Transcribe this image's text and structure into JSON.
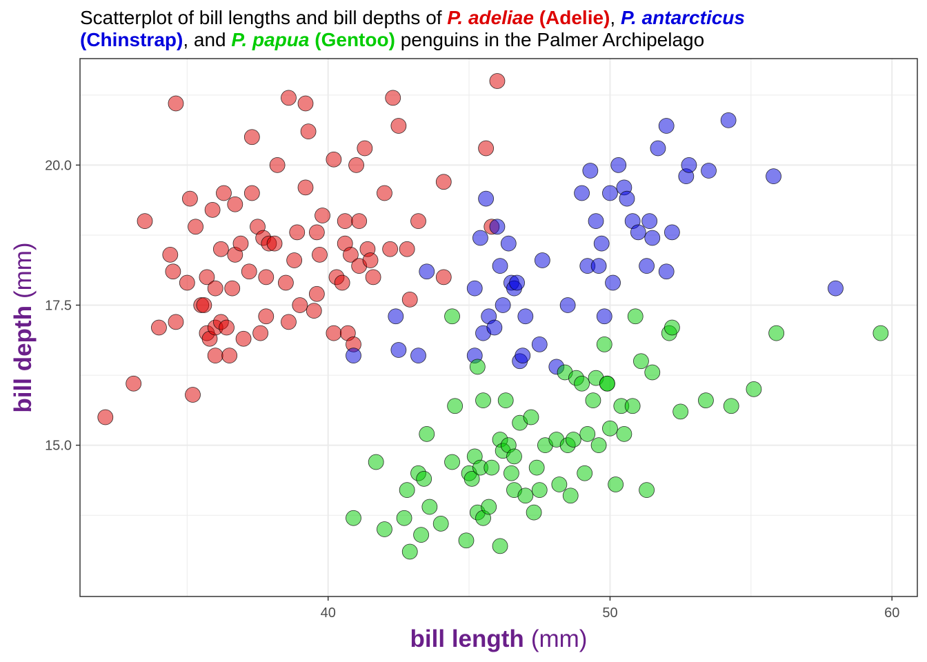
{
  "chart_data": {
    "type": "scatter",
    "title_parts": {
      "prefix": "Scatterplot of bill lengths and bill depths of",
      "adelie_species": "P. adeliae",
      "adelie_name": "(Adelie)",
      "sep1": ",",
      "chinstrap_species": "P. antarcticus",
      "chinstrap_name": "(Chinstrap)",
      "sep2": ", and",
      "gentoo_species": "P. papua",
      "gentoo_name": "(Gentoo)",
      "suffix": "penguins in the Palmer Archipelago"
    },
    "xlabel": {
      "bold": "bill length",
      "unit": "(mm)"
    },
    "ylabel": {
      "bold": "bill depth",
      "unit": "(mm)"
    },
    "xlim": [
      31.2,
      60.9
    ],
    "ylim": [
      12.3,
      21.9
    ],
    "x_ticks": [
      40,
      50,
      60
    ],
    "x_tick_labels": [
      "40",
      "50",
      "60"
    ],
    "y_ticks": [
      15,
      17.5,
      20
    ],
    "y_tick_labels": [
      "15.0",
      "17.5",
      "20.0"
    ],
    "grid": true,
    "colors": {
      "axis_title": "#6a1f8a",
      "tick_label": "#4d4d4d",
      "grid": "#ebebeb"
    },
    "series": [
      {
        "color": "#dd0000",
        "points": [
          [
            32.1,
            15.5
          ],
          [
            33.1,
            16.1
          ],
          [
            33.5,
            19.0
          ],
          [
            34.0,
            17.1
          ],
          [
            34.4,
            18.4
          ],
          [
            34.5,
            18.1
          ],
          [
            34.6,
            17.2
          ],
          [
            34.6,
            21.1
          ],
          [
            35.0,
            17.9
          ],
          [
            35.1,
            19.4
          ],
          [
            35.2,
            15.9
          ],
          [
            35.3,
            18.9
          ],
          [
            35.5,
            17.5
          ],
          [
            35.6,
            17.5
          ],
          [
            35.7,
            17.0
          ],
          [
            35.7,
            18.0
          ],
          [
            35.8,
            16.9
          ],
          [
            35.9,
            19.2
          ],
          [
            36.0,
            17.1
          ],
          [
            36.0,
            17.8
          ],
          [
            36.0,
            16.6
          ],
          [
            36.2,
            17.2
          ],
          [
            36.2,
            18.5
          ],
          [
            36.3,
            19.5
          ],
          [
            36.4,
            17.1
          ],
          [
            36.5,
            16.6
          ],
          [
            36.6,
            17.8
          ],
          [
            36.7,
            18.4
          ],
          [
            36.7,
            19.3
          ],
          [
            36.9,
            18.6
          ],
          [
            37.0,
            16.9
          ],
          [
            37.2,
            18.1
          ],
          [
            37.3,
            19.5
          ],
          [
            37.3,
            20.5
          ],
          [
            37.5,
            18.9
          ],
          [
            37.6,
            17.0
          ],
          [
            37.7,
            18.7
          ],
          [
            37.8,
            17.3
          ],
          [
            37.8,
            18.0
          ],
          [
            37.9,
            18.6
          ],
          [
            38.1,
            18.6
          ],
          [
            38.2,
            20.0
          ],
          [
            38.5,
            17.9
          ],
          [
            38.6,
            17.2
          ],
          [
            38.6,
            21.2
          ],
          [
            38.8,
            18.3
          ],
          [
            38.9,
            18.8
          ],
          [
            39.0,
            17.5
          ],
          [
            39.2,
            21.1
          ],
          [
            39.2,
            19.6
          ],
          [
            39.3,
            20.6
          ],
          [
            39.5,
            17.4
          ],
          [
            39.6,
            17.7
          ],
          [
            39.6,
            18.8
          ],
          [
            39.7,
            18.4
          ],
          [
            39.8,
            19.1
          ],
          [
            40.2,
            17.0
          ],
          [
            40.2,
            20.1
          ],
          [
            40.3,
            18.0
          ],
          [
            40.5,
            17.9
          ],
          [
            40.6,
            18.6
          ],
          [
            40.6,
            19.0
          ],
          [
            40.7,
            17.0
          ],
          [
            40.8,
            18.4
          ],
          [
            40.9,
            16.8
          ],
          [
            41.0,
            20.0
          ],
          [
            41.1,
            18.2
          ],
          [
            41.1,
            19.0
          ],
          [
            41.3,
            20.3
          ],
          [
            41.4,
            18.5
          ],
          [
            41.5,
            18.3
          ],
          [
            41.6,
            18.0
          ],
          [
            42.0,
            19.5
          ],
          [
            42.2,
            18.5
          ],
          [
            42.3,
            21.2
          ],
          [
            42.5,
            20.7
          ],
          [
            42.8,
            18.5
          ],
          [
            42.9,
            17.6
          ],
          [
            43.2,
            19.0
          ],
          [
            44.1,
            19.7
          ],
          [
            44.1,
            18.0
          ],
          [
            45.6,
            20.3
          ],
          [
            45.8,
            18.9
          ],
          [
            46.0,
            21.5
          ]
        ]
      },
      {
        "color": "#0000dd",
        "points": [
          [
            40.9,
            16.6
          ],
          [
            42.4,
            17.3
          ],
          [
            42.5,
            16.7
          ],
          [
            43.2,
            16.6
          ],
          [
            43.5,
            18.1
          ],
          [
            45.2,
            17.8
          ],
          [
            45.2,
            16.6
          ],
          [
            45.4,
            18.7
          ],
          [
            45.5,
            17.0
          ],
          [
            45.6,
            19.4
          ],
          [
            45.7,
            17.3
          ],
          [
            45.9,
            17.1
          ],
          [
            46.0,
            18.9
          ],
          [
            46.1,
            18.2
          ],
          [
            46.2,
            17.5
          ],
          [
            46.4,
            18.6
          ],
          [
            46.5,
            17.9
          ],
          [
            46.6,
            17.8
          ],
          [
            46.7,
            17.9
          ],
          [
            46.8,
            16.5
          ],
          [
            46.9,
            16.6
          ],
          [
            47.0,
            17.3
          ],
          [
            47.5,
            16.8
          ],
          [
            47.6,
            18.3
          ],
          [
            48.1,
            16.4
          ],
          [
            48.5,
            17.5
          ],
          [
            49.0,
            19.5
          ],
          [
            49.2,
            18.2
          ],
          [
            49.3,
            19.9
          ],
          [
            49.5,
            19.0
          ],
          [
            49.6,
            18.2
          ],
          [
            49.7,
            18.6
          ],
          [
            49.8,
            17.3
          ],
          [
            50.0,
            19.5
          ],
          [
            50.1,
            17.9
          ],
          [
            50.3,
            20.0
          ],
          [
            50.5,
            19.6
          ],
          [
            50.6,
            19.4
          ],
          [
            50.8,
            19.0
          ],
          [
            51.0,
            18.8
          ],
          [
            51.3,
            18.2
          ],
          [
            51.4,
            19.0
          ],
          [
            51.5,
            18.7
          ],
          [
            51.7,
            20.3
          ],
          [
            52.0,
            18.1
          ],
          [
            52.0,
            20.7
          ],
          [
            52.2,
            18.8
          ],
          [
            52.7,
            19.8
          ],
          [
            52.8,
            20.0
          ],
          [
            53.5,
            19.9
          ],
          [
            54.2,
            20.8
          ],
          [
            55.8,
            19.8
          ],
          [
            58.0,
            17.8
          ]
        ]
      },
      {
        "color": "#00cc00",
        "points": [
          [
            40.9,
            13.7
          ],
          [
            41.7,
            14.7
          ],
          [
            42.0,
            13.5
          ],
          [
            42.7,
            13.7
          ],
          [
            42.8,
            14.2
          ],
          [
            42.9,
            13.1
          ],
          [
            43.2,
            14.5
          ],
          [
            43.3,
            13.4
          ],
          [
            43.4,
            14.4
          ],
          [
            43.5,
            15.2
          ],
          [
            43.6,
            13.9
          ],
          [
            44.0,
            13.6
          ],
          [
            44.4,
            14.7
          ],
          [
            44.5,
            15.7
          ],
          [
            44.9,
            13.3
          ],
          [
            45.0,
            14.5
          ],
          [
            45.1,
            14.4
          ],
          [
            45.2,
            14.8
          ],
          [
            45.3,
            13.8
          ],
          [
            45.4,
            14.6
          ],
          [
            45.5,
            13.7
          ],
          [
            45.7,
            13.9
          ],
          [
            45.8,
            14.6
          ],
          [
            46.1,
            15.1
          ],
          [
            46.2,
            14.9
          ],
          [
            46.3,
            15.8
          ],
          [
            46.4,
            15.0
          ],
          [
            46.5,
            14.5
          ],
          [
            46.6,
            14.2
          ],
          [
            46.8,
            15.4
          ],
          [
            47.0,
            14.1
          ],
          [
            47.2,
            15.5
          ],
          [
            47.4,
            14.6
          ],
          [
            47.5,
            14.2
          ],
          [
            47.7,
            15.0
          ],
          [
            48.1,
            15.1
          ],
          [
            48.2,
            14.3
          ],
          [
            48.4,
            16.3
          ],
          [
            48.5,
            15.0
          ],
          [
            48.7,
            15.1
          ],
          [
            48.8,
            16.2
          ],
          [
            49.0,
            16.1
          ],
          [
            49.1,
            14.5
          ],
          [
            49.2,
            15.2
          ],
          [
            49.4,
            15.8
          ],
          [
            49.5,
            16.2
          ],
          [
            49.6,
            15.0
          ],
          [
            49.8,
            16.8
          ],
          [
            49.9,
            16.1
          ],
          [
            50.0,
            15.3
          ],
          [
            50.2,
            14.3
          ],
          [
            50.4,
            15.7
          ],
          [
            50.5,
            15.2
          ],
          [
            50.8,
            15.7
          ],
          [
            51.1,
            16.5
          ],
          [
            51.3,
            14.2
          ],
          [
            51.5,
            16.3
          ],
          [
            52.1,
            17.0
          ],
          [
            52.2,
            17.1
          ],
          [
            52.5,
            15.6
          ],
          [
            53.4,
            15.8
          ],
          [
            54.3,
            15.7
          ],
          [
            55.1,
            16.0
          ],
          [
            55.9,
            17.0
          ],
          [
            59.6,
            17.0
          ],
          [
            44.4,
            17.3
          ],
          [
            45.3,
            16.4
          ],
          [
            45.5,
            15.8
          ],
          [
            46.1,
            13.2
          ],
          [
            46.6,
            14.8
          ],
          [
            47.3,
            13.8
          ],
          [
            48.6,
            14.1
          ],
          [
            49.9,
            16.1
          ],
          [
            50.9,
            17.3
          ]
        ]
      }
    ]
  }
}
